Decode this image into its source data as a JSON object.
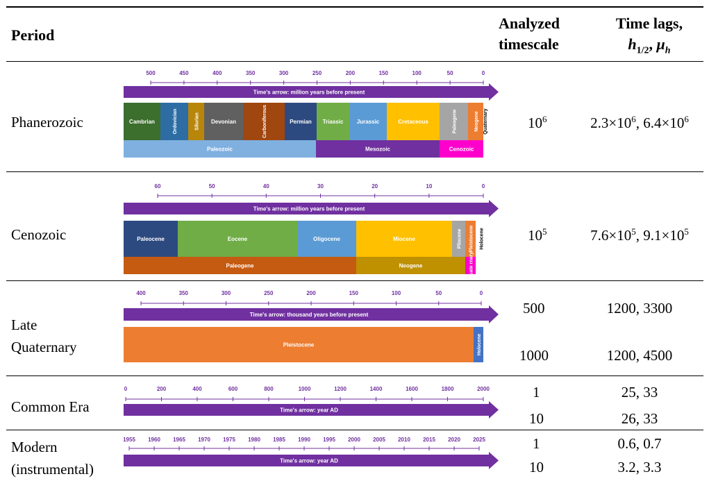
{
  "header": {
    "period": "Period",
    "scale_line1": "Analyzed",
    "scale_line2": "timescale",
    "lags_line1": "Time lags,",
    "lags_h": "h",
    "lags_sub": "1/2",
    "lags_mu": "μ",
    "lags_mu_sub": "h"
  },
  "rows": [
    {
      "period": [
        "Phanerozoic"
      ],
      "scales": [
        {
          "base": "10",
          "exp": "6"
        }
      ],
      "lags": [
        [
          "2.3×10",
          "6",
          ", 6.4×10",
          "6"
        ]
      ],
      "timeline": {
        "ticks": [
          "500",
          "450",
          "400",
          "350",
          "300",
          "250",
          "200",
          "150",
          "100",
          "50",
          "0"
        ],
        "arrow": "Time's arrow: million years before present",
        "periods": [
          {
            "label": "Cambrian",
            "color": "#3C6E2D"
          },
          {
            "label": "Ordovician",
            "color": "#2E6DA4"
          },
          {
            "label": "Silurian",
            "color": "#B8860B"
          },
          {
            "label": "Devonian",
            "color": "#606060"
          },
          {
            "label": "Carboniferous",
            "color": "#A0460F"
          },
          {
            "label": "Permian",
            "color": "#2D4A80"
          },
          {
            "label": "Triassic",
            "color": "#70AD47"
          },
          {
            "label": "Jurassic",
            "color": "#5B9BD5"
          },
          {
            "label": "Cretaceous",
            "color": "#FFC000"
          },
          {
            "label": "Paleogene",
            "color": "#A5A5A5"
          },
          {
            "label": "Neogene",
            "color": "#ED7D31"
          },
          {
            "label": "Quaternary",
            "color": "#FFFFFF"
          }
        ],
        "eras": [
          {
            "label": "Paleozoic",
            "color": "#7FB0E0"
          },
          {
            "label": "Mesozoic",
            "color": "#7030A0"
          },
          {
            "label": "Cenozoic",
            "color": "#FF00CC"
          }
        ]
      }
    },
    {
      "period": [
        "Cenozoic"
      ],
      "scales": [
        {
          "base": "10",
          "exp": "5"
        }
      ],
      "lags": [
        [
          "7.6×10",
          "5",
          ", 9.1×10",
          "5"
        ]
      ],
      "timeline": {
        "ticks": [
          "60",
          "50",
          "40",
          "30",
          "20",
          "10",
          "0"
        ],
        "arrow": "Time's arrow: million years before present",
        "periods": [
          {
            "label": "Paleocene",
            "color": "#2D4A80"
          },
          {
            "label": "Eocene",
            "color": "#70AD47"
          },
          {
            "label": "Oligocene",
            "color": "#5B9BD5"
          },
          {
            "label": "Miocene",
            "color": "#FFC000"
          },
          {
            "label": "Pliocene",
            "color": "#A5A5A5"
          },
          {
            "label": "Pleistocene",
            "color": "#ED7D31"
          },
          {
            "label": "Holocene",
            "color": "#FFFFFF"
          }
        ],
        "eras": [
          {
            "label": "Paleogene",
            "color": "#C55A11"
          },
          {
            "label": "Neogene",
            "color": "#BF9000"
          },
          {
            "label": "Quate rnary",
            "color": "#FF00CC"
          }
        ]
      }
    },
    {
      "period": [
        "Late",
        "Quaternary"
      ],
      "scales": [
        {
          "base": "500",
          "exp": ""
        },
        {
          "base": "1000",
          "exp": ""
        }
      ],
      "lags": [
        [
          "1200, 3300"
        ],
        [
          "1200, 4500"
        ]
      ],
      "timeline": {
        "ticks": [
          "400",
          "350",
          "300",
          "250",
          "200",
          "150",
          "100",
          "50",
          "0"
        ],
        "arrow": "Time's arrow: thousand years before present",
        "periods": [
          {
            "label": "Pleistocene",
            "color": "#ED7D31"
          },
          {
            "label": "Holocene",
            "color": "#4472C4"
          }
        ]
      }
    },
    {
      "period": [
        "Common Era"
      ],
      "scales": [
        {
          "base": "1",
          "exp": ""
        },
        {
          "base": "10",
          "exp": ""
        }
      ],
      "lags": [
        [
          "25, 33"
        ],
        [
          "26, 33"
        ]
      ],
      "timeline": {
        "ticks": [
          "0",
          "200",
          "400",
          "600",
          "800",
          "1000",
          "1200",
          "1400",
          "1600",
          "1800",
          "2000"
        ],
        "arrow": "Time's arrow: year AD"
      }
    },
    {
      "period": [
        "Modern",
        "(instrumental)"
      ],
      "scales": [
        {
          "base": "1",
          "exp": ""
        },
        {
          "base": "10",
          "exp": ""
        }
      ],
      "lags": [
        [
          "0.6, 0.7"
        ],
        [
          "3.2, 3.3"
        ]
      ],
      "timeline": {
        "ticks": [
          "1955",
          "1960",
          "1965",
          "1970",
          "1975",
          "1980",
          "1985",
          "1990",
          "1995",
          "2000",
          "2005",
          "2010",
          "2015",
          "2020",
          "2025"
        ],
        "arrow": "Time's arrow: year AD"
      }
    }
  ],
  "colors": {
    "arrow": "#7030A0",
    "tick_text": "#7030A0"
  }
}
